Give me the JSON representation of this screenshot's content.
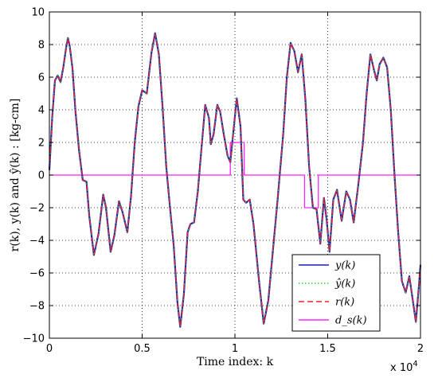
{
  "chart_data": {
    "type": "line",
    "xlabel": "Time index: k",
    "ylabel": "r(k), y(k) and ŷ(k) : [kg-cm]",
    "x_multiplier": "x 10",
    "x_multiplier_exp": "4",
    "xlim": [
      0,
      2
    ],
    "ylim": [
      -10,
      10
    ],
    "xticks": [
      0,
      0.5,
      1,
      1.5,
      2
    ],
    "xtick_labels": [
      "0",
      "0.5",
      "1",
      "1.5",
      "2"
    ],
    "yticks": [
      -10,
      -8,
      -6,
      -4,
      -2,
      0,
      2,
      4,
      6,
      8,
      10
    ],
    "ytick_labels": [
      "−10",
      "−8",
      "−6",
      "−4",
      "−2",
      "0",
      "2",
      "4",
      "6",
      "8",
      "10"
    ],
    "grid": true,
    "legend_position": "bottom-right",
    "series": [
      {
        "name": "y(k)",
        "color": "#1f1fb8",
        "style": "solid"
      },
      {
        "name": "ŷ(k)",
        "color": "#33cc33",
        "style": "dotted"
      },
      {
        "name": "r(k)",
        "color": "#e8242a",
        "style": "dashed"
      },
      {
        "name": "d_s(k)",
        "color": "#ff22ff",
        "style": "solid"
      }
    ],
    "signal_points": [
      [
        0.0,
        0.3
      ],
      [
        0.015,
        3.5
      ],
      [
        0.03,
        5.8
      ],
      [
        0.045,
        6.1
      ],
      [
        0.06,
        5.7
      ],
      [
        0.075,
        6.6
      ],
      [
        0.09,
        7.8
      ],
      [
        0.1,
        8.4
      ],
      [
        0.11,
        7.9
      ],
      [
        0.125,
        6.5
      ],
      [
        0.14,
        4.0
      ],
      [
        0.16,
        1.5
      ],
      [
        0.18,
        -0.3
      ],
      [
        0.2,
        -0.4
      ],
      [
        0.215,
        -2.5
      ],
      [
        0.24,
        -4.9
      ],
      [
        0.265,
        -3.6
      ],
      [
        0.29,
        -1.2
      ],
      [
        0.305,
        -2.0
      ],
      [
        0.33,
        -4.7
      ],
      [
        0.35,
        -3.7
      ],
      [
        0.375,
        -1.6
      ],
      [
        0.395,
        -2.3
      ],
      [
        0.42,
        -3.5
      ],
      [
        0.44,
        -1.3
      ],
      [
        0.46,
        2.0
      ],
      [
        0.48,
        4.2
      ],
      [
        0.5,
        5.2
      ],
      [
        0.525,
        5.0
      ],
      [
        0.55,
        7.5
      ],
      [
        0.57,
        8.7
      ],
      [
        0.59,
        7.4
      ],
      [
        0.61,
        4.2
      ],
      [
        0.63,
        0.5
      ],
      [
        0.65,
        -2.0
      ],
      [
        0.67,
        -4.3
      ],
      [
        0.69,
        -7.8
      ],
      [
        0.705,
        -9.3
      ],
      [
        0.725,
        -7.3
      ],
      [
        0.745,
        -3.5
      ],
      [
        0.76,
        -3.0
      ],
      [
        0.78,
        -2.9
      ],
      [
        0.8,
        -1.0
      ],
      [
        0.82,
        1.7
      ],
      [
        0.84,
        4.3
      ],
      [
        0.86,
        3.5
      ],
      [
        0.87,
        1.9
      ],
      [
        0.885,
        2.5
      ],
      [
        0.905,
        4.3
      ],
      [
        0.92,
        3.9
      ],
      [
        0.94,
        2.5
      ],
      [
        0.96,
        1.2
      ],
      [
        0.975,
        0.8
      ],
      [
        0.99,
        2.5
      ],
      [
        1.01,
        4.7
      ],
      [
        1.03,
        3.0
      ],
      [
        1.045,
        -1.5
      ],
      [
        1.06,
        -1.7
      ],
      [
        1.08,
        -1.5
      ],
      [
        1.1,
        -3.0
      ],
      [
        1.13,
        -6.5
      ],
      [
        1.155,
        -9.1
      ],
      [
        1.18,
        -7.7
      ],
      [
        1.2,
        -5.2
      ],
      [
        1.23,
        -1.5
      ],
      [
        1.26,
        2.5
      ],
      [
        1.28,
        6.0
      ],
      [
        1.3,
        8.1
      ],
      [
        1.32,
        7.6
      ],
      [
        1.34,
        6.3
      ],
      [
        1.36,
        7.4
      ],
      [
        1.38,
        4.6
      ],
      [
        1.4,
        0.5
      ],
      [
        1.42,
        -2.0
      ],
      [
        1.44,
        -2.1
      ],
      [
        1.46,
        -4.2
      ],
      [
        1.48,
        -1.4
      ],
      [
        1.495,
        -2.8
      ],
      [
        1.51,
        -4.7
      ],
      [
        1.53,
        -1.5
      ],
      [
        1.55,
        -0.9
      ],
      [
        1.575,
        -2.8
      ],
      [
        1.6,
        -1.0
      ],
      [
        1.62,
        -1.5
      ],
      [
        1.64,
        -2.9
      ],
      [
        1.665,
        -0.6
      ],
      [
        1.69,
        2.0
      ],
      [
        1.71,
        5.0
      ],
      [
        1.73,
        7.4
      ],
      [
        1.75,
        6.4
      ],
      [
        1.765,
        5.8
      ],
      [
        1.78,
        6.8
      ],
      [
        1.8,
        7.2
      ],
      [
        1.82,
        6.6
      ],
      [
        1.84,
        4.0
      ],
      [
        1.86,
        0.0
      ],
      [
        1.88,
        -3.5
      ],
      [
        1.9,
        -6.5
      ],
      [
        1.92,
        -7.2
      ],
      [
        1.94,
        -6.2
      ],
      [
        1.96,
        -7.8
      ],
      [
        1.975,
        -9.0
      ],
      [
        1.99,
        -7.0
      ],
      [
        2.0,
        -5.5
      ]
    ],
    "ds_points": [
      [
        0.0,
        0
      ],
      [
        0.975,
        0
      ],
      [
        0.975,
        2
      ],
      [
        1.05,
        2
      ],
      [
        1.05,
        0
      ],
      [
        1.375,
        0
      ],
      [
        1.375,
        -2
      ],
      [
        1.45,
        -2
      ],
      [
        1.45,
        0
      ],
      [
        2.0,
        0
      ]
    ]
  }
}
